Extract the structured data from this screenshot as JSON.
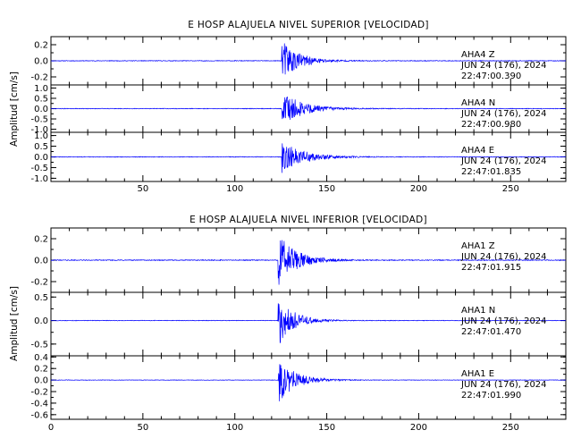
{
  "chart_data": [
    {
      "type": "line",
      "title": "E HOSP ALAJUELA NIVEL SUPERIOR [VELOCIDAD]",
      "ylabel": "Amplitud  [cm/s]",
      "xlabel": "",
      "xlim": [
        0,
        280
      ],
      "x_ticks": [
        50,
        100,
        150,
        200,
        250
      ],
      "show_x_tick_labels": true,
      "grid": false,
      "line_color": "#0000ff",
      "panels": [
        {
          "station": "AHA4",
          "component": "Z",
          "date": "JUN 24 (176), 2024",
          "time": "22:47:00.390",
          "ylim": [
            -0.3,
            0.3
          ],
          "y_ticks": [
            -0.2,
            0.0,
            0.2
          ],
          "y_tick_labels": [
            "-0.2",
            "0.0",
            "0.2"
          ],
          "onset": 125.5,
          "peak_amplitude": 0.27,
          "noise_amplitude": 0.004,
          "decay": 9
        },
        {
          "station": "AHA4",
          "component": "N",
          "date": "JUN 24 (176), 2024",
          "time": "22:47:00.980",
          "ylim": [
            -1.15,
            1.15
          ],
          "y_ticks": [
            -1.0,
            -0.5,
            0.0,
            0.5,
            1.0
          ],
          "y_tick_labels": [
            "-1.0",
            "-0.5",
            "0.0",
            "0.5",
            "1.0"
          ],
          "onset": 125.5,
          "peak_amplitude": 0.85,
          "noise_amplitude": 0.015,
          "decay": 11
        },
        {
          "station": "AHA4",
          "component": "E",
          "date": "JUN 24 (176), 2024",
          "time": "22:47:01.835",
          "ylim": [
            -1.15,
            1.15
          ],
          "y_ticks": [
            -1.0,
            -0.5,
            0.0,
            0.5,
            1.0
          ],
          "y_tick_labels": [
            "-1.0",
            "-0.5",
            "0.0",
            "0.5",
            "1.0"
          ],
          "onset": 125.5,
          "peak_amplitude": 0.8,
          "noise_amplitude": 0.015,
          "decay": 11
        }
      ]
    },
    {
      "type": "line",
      "title": "E HOSP ALAJUELA NIVEL INFERIOR [VELOCIDAD]",
      "ylabel": "Amplitud  [cm/s]",
      "xlabel": "",
      "xlim": [
        0,
        280
      ],
      "x_ticks": [
        0,
        50,
        100,
        150,
        200,
        250
      ],
      "show_x_tick_labels": true,
      "grid": false,
      "line_color": "#0000ff",
      "panels": [
        {
          "station": "AHA1",
          "component": "Z",
          "date": "JUN 24 (176), 2024",
          "time": "22:47:01.915",
          "ylim": [
            -0.3,
            0.3
          ],
          "y_ticks": [
            -0.2,
            0.0,
            0.2
          ],
          "y_tick_labels": [
            "-0.2",
            "0.0",
            "0.2"
          ],
          "onset": 123.5,
          "peak_amplitude": 0.27,
          "noise_amplitude": 0.004,
          "decay": 9
        },
        {
          "station": "AHA1",
          "component": "N",
          "date": "JUN 24 (176), 2024",
          "time": "22:47:01.470",
          "ylim": [
            -0.75,
            0.6
          ],
          "y_ticks": [
            -0.5,
            0.0,
            0.5
          ],
          "y_tick_labels": [
            "-0.5",
            "0.0",
            "0.5"
          ],
          "onset": 123.5,
          "peak_amplitude": 0.55,
          "noise_amplitude": 0.006,
          "decay": 8
        },
        {
          "station": "AHA1",
          "component": "E",
          "date": "JUN 24 (176), 2024",
          "time": "22:47:01.990",
          "ylim": [
            -0.68,
            0.42
          ],
          "y_ticks": [
            -0.6,
            -0.4,
            -0.2,
            0.0,
            0.2,
            0.4
          ],
          "y_tick_labels": [
            "-0.6",
            "-0.4",
            "-0.2",
            "0.0",
            "0.2",
            "0.4"
          ],
          "onset": 123.5,
          "peak_amplitude": 0.4,
          "noise_amplitude": 0.004,
          "decay": 9
        }
      ]
    }
  ]
}
